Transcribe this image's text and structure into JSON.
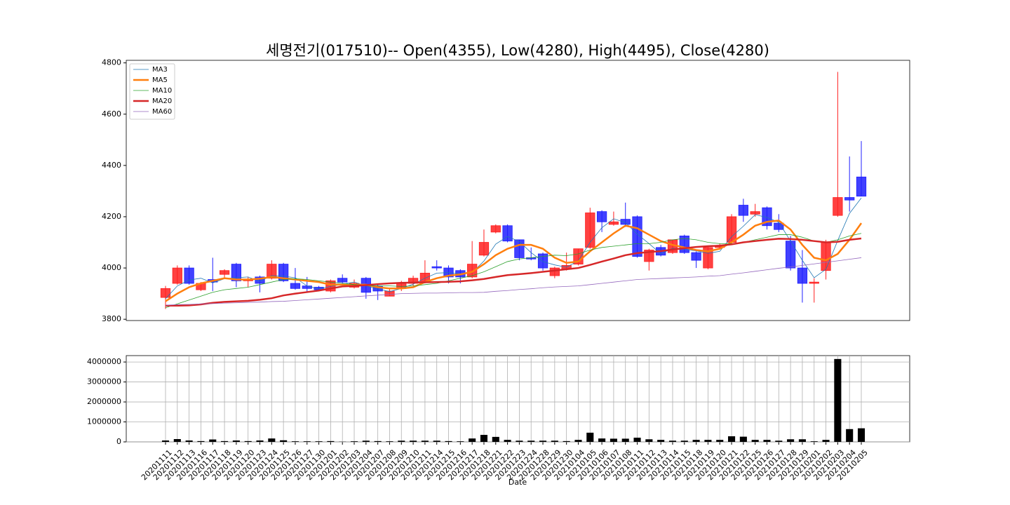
{
  "chart_data": [
    {
      "type": "candlestick",
      "title": "세명전기(017510)-- Open(4355), Low(4280), High(4495), Close(4280)",
      "open": [
        3885,
        3940,
        4000,
        3915,
        3955,
        3975,
        4015,
        3950,
        3965,
        3960,
        4015,
        3940,
        3930,
        3925,
        3910,
        3960,
        3925,
        3960,
        3930,
        3890,
        3920,
        3940,
        3945,
        4005,
        4000,
        3990,
        3965,
        4050,
        4140,
        4165,
        4110,
        4040,
        4055,
        3970,
        3995,
        4015,
        4080,
        4220,
        4170,
        4190,
        4200,
        4025,
        4080,
        4060,
        4125,
        4060,
        4000,
        4080,
        4100,
        4245,
        4210,
        4235,
        4175,
        4105,
        4000,
        3940,
        3990,
        4205,
        4275,
        4355
      ],
      "high": [
        3930,
        4010,
        4010,
        3945,
        4040,
        3995,
        4020,
        3965,
        3970,
        4030,
        4020,
        4000,
        3965,
        3930,
        3955,
        3975,
        3955,
        3965,
        3935,
        3920,
        3950,
        3970,
        4030,
        4030,
        4010,
        3995,
        4105,
        4150,
        4170,
        4170,
        4110,
        4080,
        4060,
        4005,
        4060,
        4075,
        4235,
        4225,
        4220,
        4255,
        4205,
        4075,
        4090,
        4110,
        4130,
        4065,
        4085,
        4095,
        4210,
        4270,
        4250,
        4240,
        4210,
        4125,
        4070,
        3960,
        4110,
        4765,
        4435,
        4495
      ],
      "low": [
        3840,
        3935,
        3935,
        3910,
        3910,
        3960,
        3925,
        3925,
        3905,
        3955,
        3945,
        3915,
        3905,
        3910,
        3905,
        3940,
        3920,
        3880,
        3875,
        3890,
        3910,
        3930,
        3940,
        3990,
        3940,
        3940,
        3960,
        4045,
        4135,
        4100,
        4030,
        4030,
        3990,
        3960,
        3990,
        4010,
        4075,
        4140,
        4165,
        4160,
        4040,
        3990,
        4045,
        4055,
        4055,
        4000,
        3995,
        4075,
        4095,
        4180,
        4200,
        4150,
        4140,
        3990,
        3865,
        3865,
        3955,
        4200,
        4220,
        4280
      ],
      "close": [
        3920,
        4000,
        3940,
        3940,
        3945,
        3990,
        3950,
        3955,
        3940,
        4015,
        3950,
        3920,
        3920,
        3915,
        3950,
        3945,
        3940,
        3905,
        3910,
        3910,
        3940,
        3960,
        3980,
        4000,
        3965,
        3965,
        4015,
        4100,
        4165,
        4105,
        4040,
        4035,
        4000,
        4000,
        4010,
        4075,
        4215,
        4180,
        4180,
        4170,
        4045,
        4070,
        4050,
        4110,
        4060,
        4030,
        4080,
        4085,
        4200,
        4205,
        4220,
        4165,
        4150,
        4000,
        3940,
        3945,
        4100,
        4275,
        4265,
        4280
      ],
      "up_color": "#ff2020",
      "down_color": "#2020ff",
      "series": [
        {
          "name": "MA3",
          "color": "#1f77b4",
          "width": 0.8,
          "values": [
            3880,
            3930,
            3953,
            3960,
            3942,
            3958,
            3962,
            3965,
            3948,
            3970,
            3968,
            3962,
            3930,
            3918,
            3928,
            3937,
            3945,
            3930,
            3918,
            3908,
            3920,
            3937,
            3960,
            3980,
            3982,
            3977,
            3982,
            4027,
            4093,
            4123,
            4103,
            4060,
            4025,
            4012,
            4003,
            4028,
            4100,
            4157,
            4192,
            4177,
            4132,
            4095,
            4055,
            4077,
            4073,
            4067,
            4057,
            4065,
            4122,
            4163,
            4208,
            4197,
            4178,
            4105,
            4030,
            3962,
            3995,
            4107,
            4213,
            4273
          ]
        },
        {
          "name": "MA5",
          "color": "#ff7f0e",
          "width": 2.5,
          "values": [
            3870,
            3900,
            3925,
            3940,
            3950,
            3960,
            3955,
            3955,
            3958,
            3965,
            3960,
            3955,
            3950,
            3945,
            3935,
            3935,
            3935,
            3935,
            3925,
            3920,
            3920,
            3925,
            3945,
            3960,
            3970,
            3975,
            3985,
            4015,
            4050,
            4075,
            4090,
            4090,
            4075,
            4040,
            4020,
            4025,
            4065,
            4100,
            4135,
            4165,
            4155,
            4130,
            4105,
            4090,
            4080,
            4070,
            4065,
            4075,
            4100,
            4130,
            4165,
            4180,
            4185,
            4150,
            4090,
            4040,
            4030,
            4055,
            4110,
            4175
          ]
        },
        {
          "name": "MA10",
          "color": "#2ca02c",
          "width": 0.8,
          "values": [
            3845,
            3860,
            3875,
            3890,
            3905,
            3915,
            3920,
            3925,
            3935,
            3945,
            3955,
            3958,
            3955,
            3950,
            3945,
            3940,
            3935,
            3932,
            3930,
            3930,
            3928,
            3930,
            3935,
            3940,
            3950,
            3960,
            3970,
            3985,
            4005,
            4025,
            4035,
            4040,
            4045,
            4050,
            4048,
            4055,
            4070,
            4080,
            4085,
            4090,
            4095,
            4095,
            4100,
            4110,
            4115,
            4110,
            4100,
            4095,
            4095,
            4100,
            4110,
            4120,
            4130,
            4130,
            4120,
            4105,
            4100,
            4110,
            4125,
            4135
          ]
        },
        {
          "name": "MA20",
          "color": "#d62728",
          "width": 2.5,
          "values": [
            3853,
            3853,
            3854,
            3858,
            3864,
            3868,
            3870,
            3872,
            3876,
            3882,
            3893,
            3900,
            3906,
            3912,
            3920,
            3928,
            3930,
            3933,
            3937,
            3940,
            3942,
            3943,
            3944,
            3945,
            3946,
            3948,
            3952,
            3957,
            3965,
            3972,
            3976,
            3980,
            3985,
            3990,
            3995,
            4000,
            4012,
            4025,
            4037,
            4050,
            4058,
            4062,
            4066,
            4072,
            4077,
            4082,
            4085,
            4087,
            4092,
            4100,
            4105,
            4110,
            4114,
            4113,
            4110,
            4105,
            4100,
            4102,
            4110,
            4115
          ]
        },
        {
          "name": "MA60",
          "color": "#9467bd",
          "width": 0.8,
          "values": [
            3855,
            3857,
            3858,
            3860,
            3861,
            3863,
            3864,
            3866,
            3867,
            3869,
            3870,
            3873,
            3876,
            3879,
            3882,
            3885,
            3888,
            3891,
            3894,
            3897,
            3900,
            3901,
            3902,
            3902,
            3903,
            3904,
            3904,
            3905,
            3909,
            3912,
            3916,
            3919,
            3923,
            3926,
            3928,
            3930,
            3935,
            3940,
            3945,
            3950,
            3955,
            3957,
            3959,
            3961,
            3963,
            3965,
            3968,
            3970,
            3976,
            3981,
            3987,
            3993,
            3999,
            4004,
            4010,
            4016,
            4022,
            4028,
            4034,
            4040
          ]
        }
      ],
      "ylim": [
        3795,
        4810
      ],
      "yticks": [
        3800,
        4000,
        4200,
        4400,
        4600,
        4800
      ],
      "legend": "upper left"
    },
    {
      "type": "bar",
      "x_label": "Date",
      "categories": [
        "20201111",
        "20201112",
        "20201113",
        "20201116",
        "20201117",
        "20201118",
        "20201119",
        "20201120",
        "20201123",
        "20201124",
        "20201125",
        "20201126",
        "20201127",
        "20201130",
        "20201201",
        "20201202",
        "20201203",
        "20201204",
        "20201207",
        "20201208",
        "20201209",
        "20201210",
        "20201211",
        "20201214",
        "20201215",
        "20201216",
        "20201217",
        "20201218",
        "20201221",
        "20201222",
        "20201223",
        "20201224",
        "20201228",
        "20201229",
        "20201230",
        "20210104",
        "20210105",
        "20210106",
        "20210107",
        "20210108",
        "20210111",
        "20210112",
        "20210113",
        "20210114",
        "20210115",
        "20210118",
        "20210119",
        "20210120",
        "20210121",
        "20210122",
        "20210125",
        "20210126",
        "20210127",
        "20210128",
        "20210129",
        "20210201",
        "20210202",
        "20210203",
        "20210204",
        "20210205"
      ],
      "values": [
        70000,
        140000,
        70000,
        40000,
        120000,
        40000,
        70000,
        40000,
        70000,
        170000,
        80000,
        30000,
        30000,
        30000,
        40000,
        10000,
        30000,
        60000,
        40000,
        30000,
        60000,
        60000,
        60000,
        60000,
        40000,
        30000,
        170000,
        350000,
        250000,
        100000,
        60000,
        60000,
        60000,
        60000,
        40000,
        100000,
        460000,
        170000,
        160000,
        160000,
        210000,
        130000,
        100000,
        60000,
        60000,
        100000,
        100000,
        100000,
        280000,
        260000,
        100000,
        100000,
        60000,
        130000,
        130000,
        30000,
        100000,
        4150000,
        640000,
        680000
      ],
      "color": "#000000",
      "ylim": [
        0,
        4320000
      ],
      "yticks": [
        0,
        1000000,
        2000000,
        3000000,
        4000000
      ],
      "grid": true
    }
  ]
}
